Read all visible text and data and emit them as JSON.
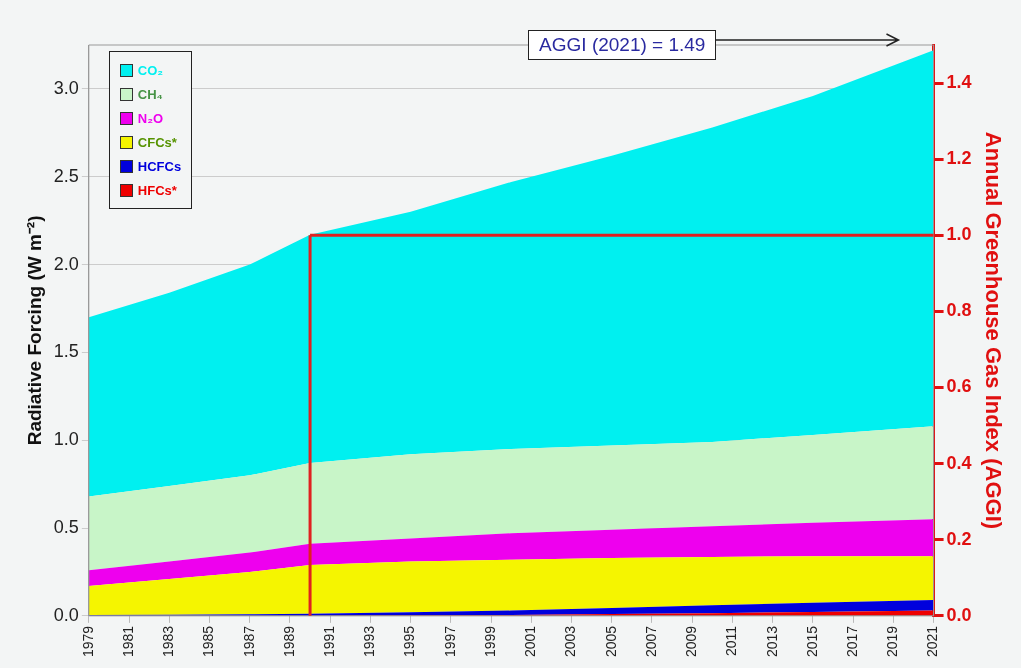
{
  "chart_data": {
    "type": "area",
    "stacked": true,
    "ylabel": "Radiative Forcing (W m⁻²)",
    "y2label": "Annual Greenhouse Gas Index (AGGI)",
    "x": [
      1979,
      1983,
      1987,
      1990,
      1995,
      2000,
      2005,
      2010,
      2015,
      2021
    ],
    "xlim": [
      1979,
      2021
    ],
    "xticks": [
      1979,
      1981,
      1983,
      1985,
      1987,
      1989,
      1991,
      1993,
      1995,
      1997,
      1999,
      2001,
      2003,
      2005,
      2007,
      2009,
      2011,
      2013,
      2015,
      2017,
      2019,
      2021
    ],
    "ylim": [
      0,
      3.25
    ],
    "yticks": [
      {
        "value": 0,
        "label": "0.0"
      },
      0.5,
      {
        "value": 1,
        "label": "1.0"
      },
      1.5,
      {
        "value": 2,
        "label": "2.0"
      },
      2.5,
      {
        "value": 3,
        "label": "3.0"
      }
    ],
    "y2lim": [
      0,
      1.5
    ],
    "y2ticks": [
      {
        "value": 0,
        "label": "0.0"
      },
      0.2,
      0.4,
      0.6,
      0.8,
      {
        "value": 1,
        "label": "1.0"
      },
      1.2,
      1.4
    ],
    "series": [
      {
        "name": "HFCs*",
        "color": "#ee0000",
        "values": [
          0,
          0,
          0,
          0.001,
          0.003,
          0.005,
          0.01,
          0.015,
          0.022,
          0.03
        ]
      },
      {
        "name": "HCFCs",
        "color": "#0000dd",
        "values": [
          0.005,
          0.007,
          0.009,
          0.011,
          0.017,
          0.025,
          0.035,
          0.045,
          0.053,
          0.06
        ]
      },
      {
        "name": "CFCs*",
        "color": "#f5f500",
        "values": [
          0.165,
          0.203,
          0.241,
          0.278,
          0.29,
          0.29,
          0.285,
          0.275,
          0.265,
          0.25
        ]
      },
      {
        "name": "N₂O",
        "color": "#ee00ee",
        "values": [
          0.09,
          0.1,
          0.11,
          0.12,
          0.13,
          0.15,
          0.16,
          0.175,
          0.19,
          0.21
        ]
      },
      {
        "name": "CH₄",
        "color": "#c8f5c8",
        "values": [
          0.42,
          0.43,
          0.44,
          0.46,
          0.48,
          0.48,
          0.48,
          0.48,
          0.5,
          0.53
        ]
      },
      {
        "name": "CO₂",
        "color": "#00f0f0",
        "values": [
          1.02,
          1.1,
          1.2,
          1.3,
          1.38,
          1.52,
          1.65,
          1.79,
          1.93,
          2.14
        ]
      }
    ],
    "ref_lines": [
      {
        "axis": "x",
        "value": 1990,
        "color": "#e02020"
      },
      {
        "axis": "y2",
        "value": 1,
        "color": "#e02020"
      }
    ],
    "annotations": [
      "AGGI (2021) = 1.49"
    ],
    "grid": "y",
    "legend": "top left"
  }
}
